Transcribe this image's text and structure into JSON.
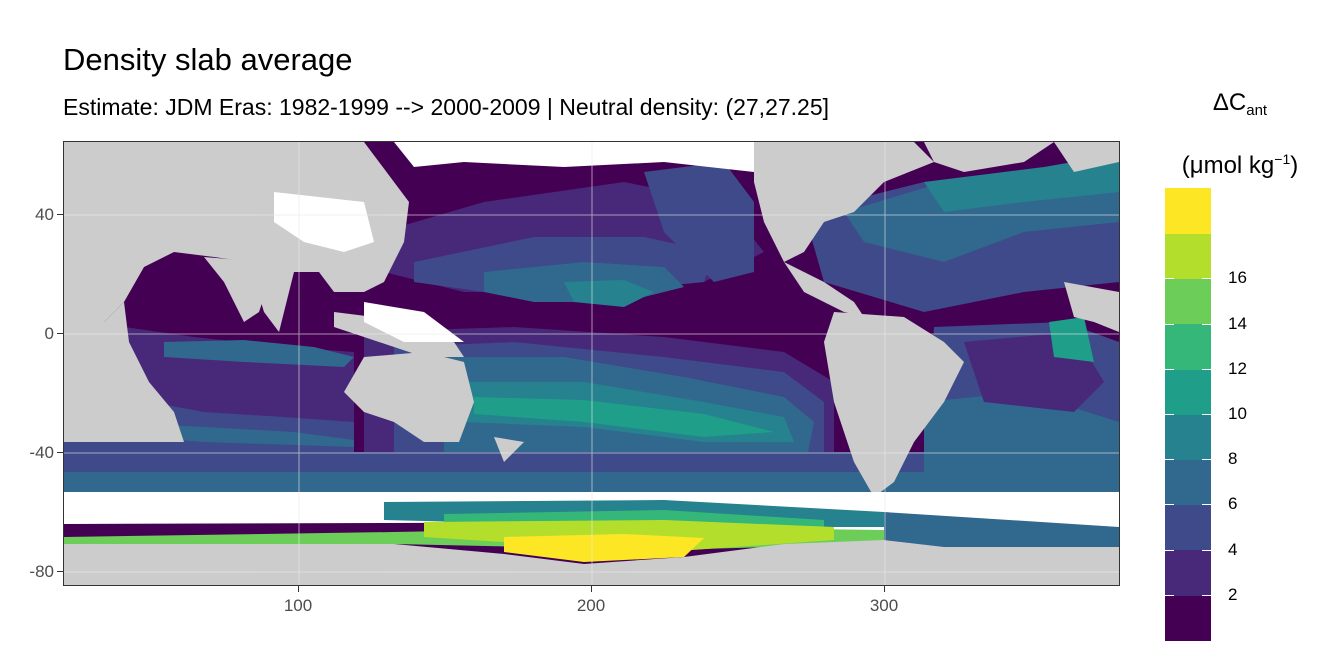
{
  "title": "Density slab average",
  "subtitle": "Estimate: JDM Eras: 1982-1999 --> 2000-2009 | Neutral density: (27,27.25]",
  "legend": {
    "title_main": "ΔC",
    "title_sub": "ant",
    "unit_prefix": "(μmol kg",
    "unit_sup": "−1",
    "unit_suffix": ")",
    "breaks": [
      "2",
      "4",
      "6",
      "8",
      "10",
      "12",
      "14",
      "16"
    ],
    "colors": [
      "#440154",
      "#482878",
      "#3E4A89",
      "#31688E",
      "#26828E",
      "#1F9E89",
      "#35B779",
      "#6DCD59",
      "#B4DE2C",
      "#FDE725"
    ]
  },
  "axes": {
    "x_ticks": [
      "100",
      "200",
      "300"
    ],
    "y_ticks": [
      "40",
      "0",
      "-40",
      "-80"
    ],
    "x_range": [
      20,
      380
    ],
    "y_range": [
      -85,
      65
    ]
  },
  "colors": {
    "land": "#cccccc",
    "no_data": "#ffffff",
    "panel_border": "#333333"
  }
}
